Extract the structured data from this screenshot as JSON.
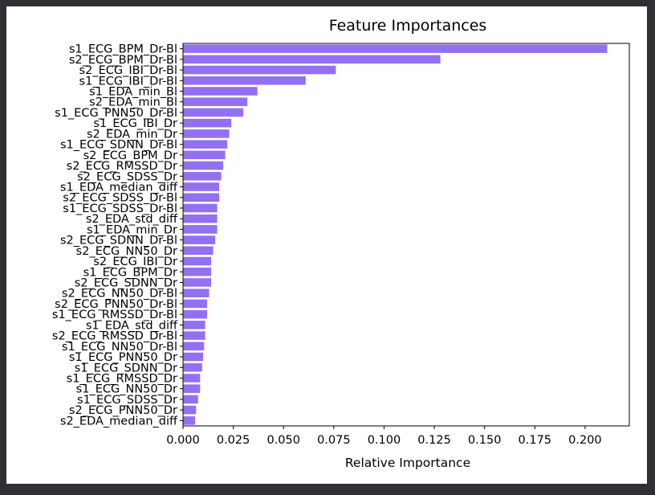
{
  "chart_data": {
    "type": "bar",
    "orientation": "horizontal",
    "title": "Feature Importances",
    "xlabel": "Relative Importance",
    "ylabel": "",
    "xlim": [
      0,
      0.222
    ],
    "xticks": [
      "0.000",
      "0.025",
      "0.050",
      "0.075",
      "0.100",
      "0.125",
      "0.150",
      "0.175",
      "0.200"
    ],
    "bar_color": "#9370f0",
    "grid": false,
    "legend": "none",
    "categories": [
      "s1_ECG_BPM_Dr-Bl",
      "s2_ECG_BPM_Dr-Bl",
      "s2_ECG_IBI_Dr-Bl",
      "s1_ECG_IBI_Dr-Bl",
      "s1_EDA_min_Bl",
      "s2_EDA_min_Bl",
      "s1_ECG_PNN50_Dr-Bl",
      "s1_ECG_IBI_Dr",
      "s2_EDA_min_Dr",
      "s1_ECG_SDNN_Dr-Bl",
      "s2_ECG_BPM_Dr",
      "s2_ECG_RMSSD_Dr",
      "s2_ECG_SDSS_Dr",
      "s1_EDA_median_diff",
      "s2_ECG_SDSS_Dr-Bl",
      "s1_ECG_SDSS_Dr-Bl",
      "s2_EDA_std_diff",
      "s1_EDA_min_Dr",
      "s2_ECG_SDNN_Dr-Bl",
      "s2_ECG_NN50_Dr",
      "s2_ECG_IBI_Dr",
      "s1_ECG_BPM_Dr",
      "s2_ECG_SDNN_Dr",
      "s2_ECG_NN50_Dr-Bl",
      "s2_ECG_PNN50_Dr-Bl",
      "s1_ECG_RMSSD_Dr-Bl",
      "s1_EDA_std_diff",
      "s2_ECG_RMSSD_Dr-Bl",
      "s1_ECG_NN50_Dr-Bl",
      "s1_ECG_PNN50_Dr",
      "s1_ECG_SDNN_Dr",
      "s1_ECG_RMSSD_Dr",
      "s1_ECG_NN50_Dr",
      "s1_ECG_SDSS_Dr",
      "s2_ECG_PNN50_Dr",
      "s2_EDA_median_diff"
    ],
    "values": [
      0.211,
      0.128,
      0.076,
      0.061,
      0.037,
      0.032,
      0.03,
      0.024,
      0.023,
      0.022,
      0.021,
      0.02,
      0.019,
      0.018,
      0.018,
      0.017,
      0.017,
      0.017,
      0.016,
      0.015,
      0.014,
      0.014,
      0.014,
      0.013,
      0.012,
      0.012,
      0.011,
      0.011,
      0.0105,
      0.01,
      0.0095,
      0.0085,
      0.0085,
      0.0075,
      0.0065,
      0.006
    ]
  }
}
